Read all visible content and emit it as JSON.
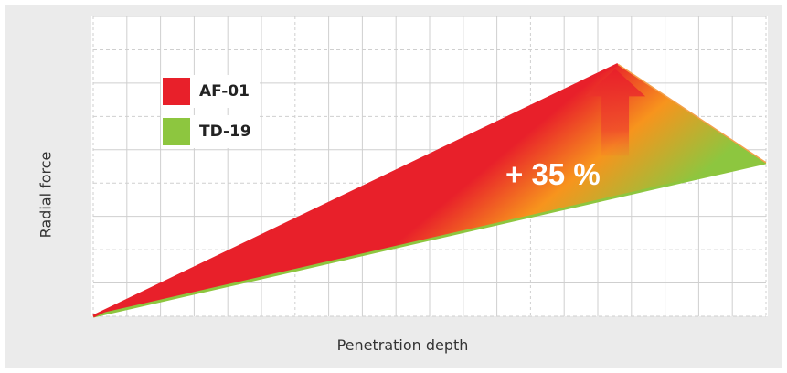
{
  "chart_data": {
    "type": "area",
    "xlabel": "Penetration depth",
    "ylabel": "Radial force",
    "x": [
      0,
      0.78,
      1.0
    ],
    "series": [
      {
        "name": "AF-01",
        "values": [
          0,
          1.0,
          null
        ],
        "color": "#e8202a"
      },
      {
        "name": "TD-19",
        "values": [
          0,
          null,
          0.61
        ],
        "color": "#8dc63f"
      }
    ],
    "xlim": [
      0,
      1.0
    ],
    "ylim": [
      0,
      1.19
    ],
    "grid": true,
    "legend": "top-left",
    "annotation": {
      "text": "+ 35 %",
      "arrow": "up",
      "arrow_color": "#e8202a"
    },
    "fill_gradient": [
      "#e8202a",
      "#f7941d",
      "#8dc63f"
    ]
  }
}
